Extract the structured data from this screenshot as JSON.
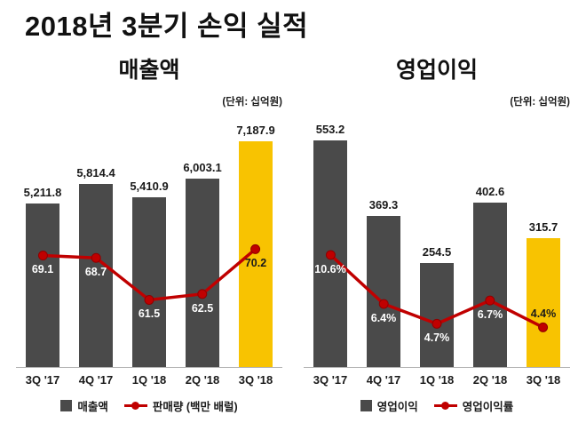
{
  "page_title": "2018년 3분기 손익 실적",
  "chart_data": [
    {
      "type": "bar",
      "title": "매출액",
      "unit_note": "(단위: 십억원)",
      "categories": [
        "3Q '17",
        "4Q '17",
        "1Q '18",
        "2Q '18",
        "3Q '18"
      ],
      "series": [
        {
          "name": "매출액",
          "kind": "bar",
          "values": [
            5211.8,
            5814.4,
            5410.9,
            6003.1,
            7187.9
          ],
          "labels": [
            "5,211.8",
            "5,814.4",
            "5,410.9",
            "6,003.1",
            "7,187.9"
          ]
        },
        {
          "name": "판매량 (백만 배럴)",
          "kind": "line",
          "values": [
            69.1,
            68.7,
            61.5,
            62.5,
            70.2
          ],
          "labels": [
            "69.1",
            "68.7",
            "61.5",
            "62.5",
            "70.2"
          ]
        }
      ],
      "highlight_index": 4,
      "ylim": [
        0,
        8200
      ],
      "line_ylim": [
        50,
        94
      ],
      "line_label_above": [
        false,
        false,
        false,
        false,
        false
      ],
      "grid": false,
      "legend_position": "bottom"
    },
    {
      "type": "bar",
      "title": "영업이익",
      "unit_note": "(단위: 십억원)",
      "categories": [
        "3Q '17",
        "4Q '17",
        "1Q '18",
        "2Q '18",
        "3Q '18"
      ],
      "series": [
        {
          "name": "영업이익",
          "kind": "bar",
          "values": [
            553.2,
            369.3,
            254.5,
            402.6,
            315.7
          ],
          "labels": [
            "553.2",
            "369.3",
            "254.5",
            "402.6",
            "315.7"
          ]
        },
        {
          "name": "영업이익률",
          "kind": "line",
          "values": [
            10.6,
            6.4,
            4.7,
            6.7,
            4.4
          ],
          "labels": [
            "10.6%",
            "6.4%",
            "4.7%",
            "6.7%",
            "4.4%"
          ]
        }
      ],
      "highlight_index": 4,
      "ylim": [
        0,
        630
      ],
      "line_ylim": [
        1,
        23
      ],
      "line_label_above": [
        false,
        false,
        false,
        false,
        true
      ],
      "grid": false,
      "legend_position": "bottom"
    }
  ],
  "colors": {
    "bar": "#4a4a4a",
    "bar_highlight": "#f8c301",
    "line": "#c00000",
    "line_marker_edge": "#8f0000",
    "line_label_default": "#ffffff",
    "line_label_on_highlight": "#1a1a1a",
    "title": "#111111",
    "axis": "#b3b3b3"
  }
}
